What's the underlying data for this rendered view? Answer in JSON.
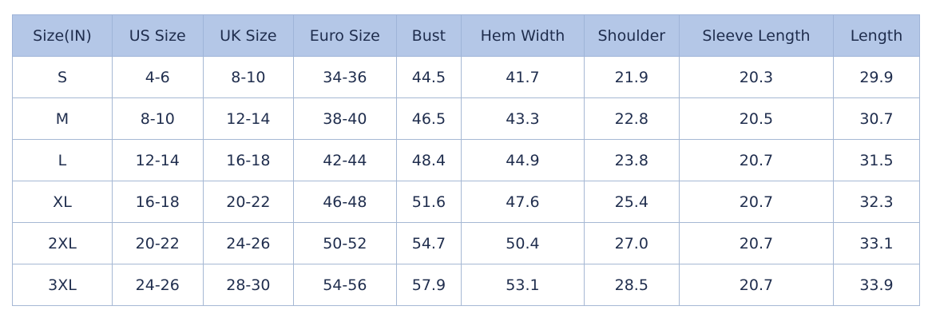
{
  "table": {
    "name": "garment-size-chart",
    "unit_note": "IN",
    "columns": [
      "Size(IN)",
      "US Size",
      "UK Size",
      "Euro Size",
      "Bust",
      "Hem Width",
      "Shoulder",
      "Sleeve Length",
      "Length"
    ],
    "rows": [
      [
        "S",
        "4-6",
        "8-10",
        "34-36",
        "44.5",
        "41.7",
        "21.9",
        "20.3",
        "29.9"
      ],
      [
        "M",
        "8-10",
        "12-14",
        "38-40",
        "46.5",
        "43.3",
        "22.8",
        "20.5",
        "30.7"
      ],
      [
        "L",
        "12-14",
        "16-18",
        "42-44",
        "48.4",
        "44.9",
        "23.8",
        "20.7",
        "31.5"
      ],
      [
        "XL",
        "16-18",
        "20-22",
        "46-48",
        "51.6",
        "47.6",
        "25.4",
        "20.7",
        "32.3"
      ],
      [
        "2XL",
        "20-22",
        "24-26",
        "50-52",
        "54.7",
        "50.4",
        "27.0",
        "20.7",
        "33.1"
      ],
      [
        "3XL",
        "24-26",
        "28-30",
        "54-56",
        "57.9",
        "53.1",
        "28.5",
        "20.7",
        "33.9"
      ]
    ],
    "colors": {
      "header_bg": "#b4c7e7",
      "border": "#a6b8d4",
      "text": "#1f2d4d",
      "row_bg": "#ffffff"
    }
  },
  "chart_data": {
    "type": "table",
    "title": "",
    "categories": [
      "S",
      "M",
      "L",
      "XL",
      "2XL",
      "3XL"
    ],
    "series": [
      {
        "name": "US Size",
        "values": [
          "4-6",
          "8-10",
          "12-14",
          "16-18",
          "20-22",
          "24-26"
        ]
      },
      {
        "name": "UK Size",
        "values": [
          "8-10",
          "12-14",
          "16-18",
          "20-22",
          "24-26",
          "28-30"
        ]
      },
      {
        "name": "Euro Size",
        "values": [
          "34-36",
          "38-40",
          "42-44",
          "46-48",
          "50-52",
          "54-56"
        ]
      },
      {
        "name": "Bust",
        "values": [
          44.5,
          46.5,
          48.4,
          51.6,
          54.7,
          57.9
        ]
      },
      {
        "name": "Hem Width",
        "values": [
          41.7,
          43.3,
          44.9,
          47.6,
          50.4,
          53.1
        ]
      },
      {
        "name": "Shoulder",
        "values": [
          21.9,
          22.8,
          23.8,
          25.4,
          27.0,
          28.5
        ]
      },
      {
        "name": "Sleeve Length",
        "values": [
          20.3,
          20.5,
          20.7,
          20.7,
          20.7,
          20.7
        ]
      },
      {
        "name": "Length",
        "values": [
          29.9,
          30.7,
          31.5,
          32.3,
          33.1,
          33.9
        ]
      }
    ]
  }
}
